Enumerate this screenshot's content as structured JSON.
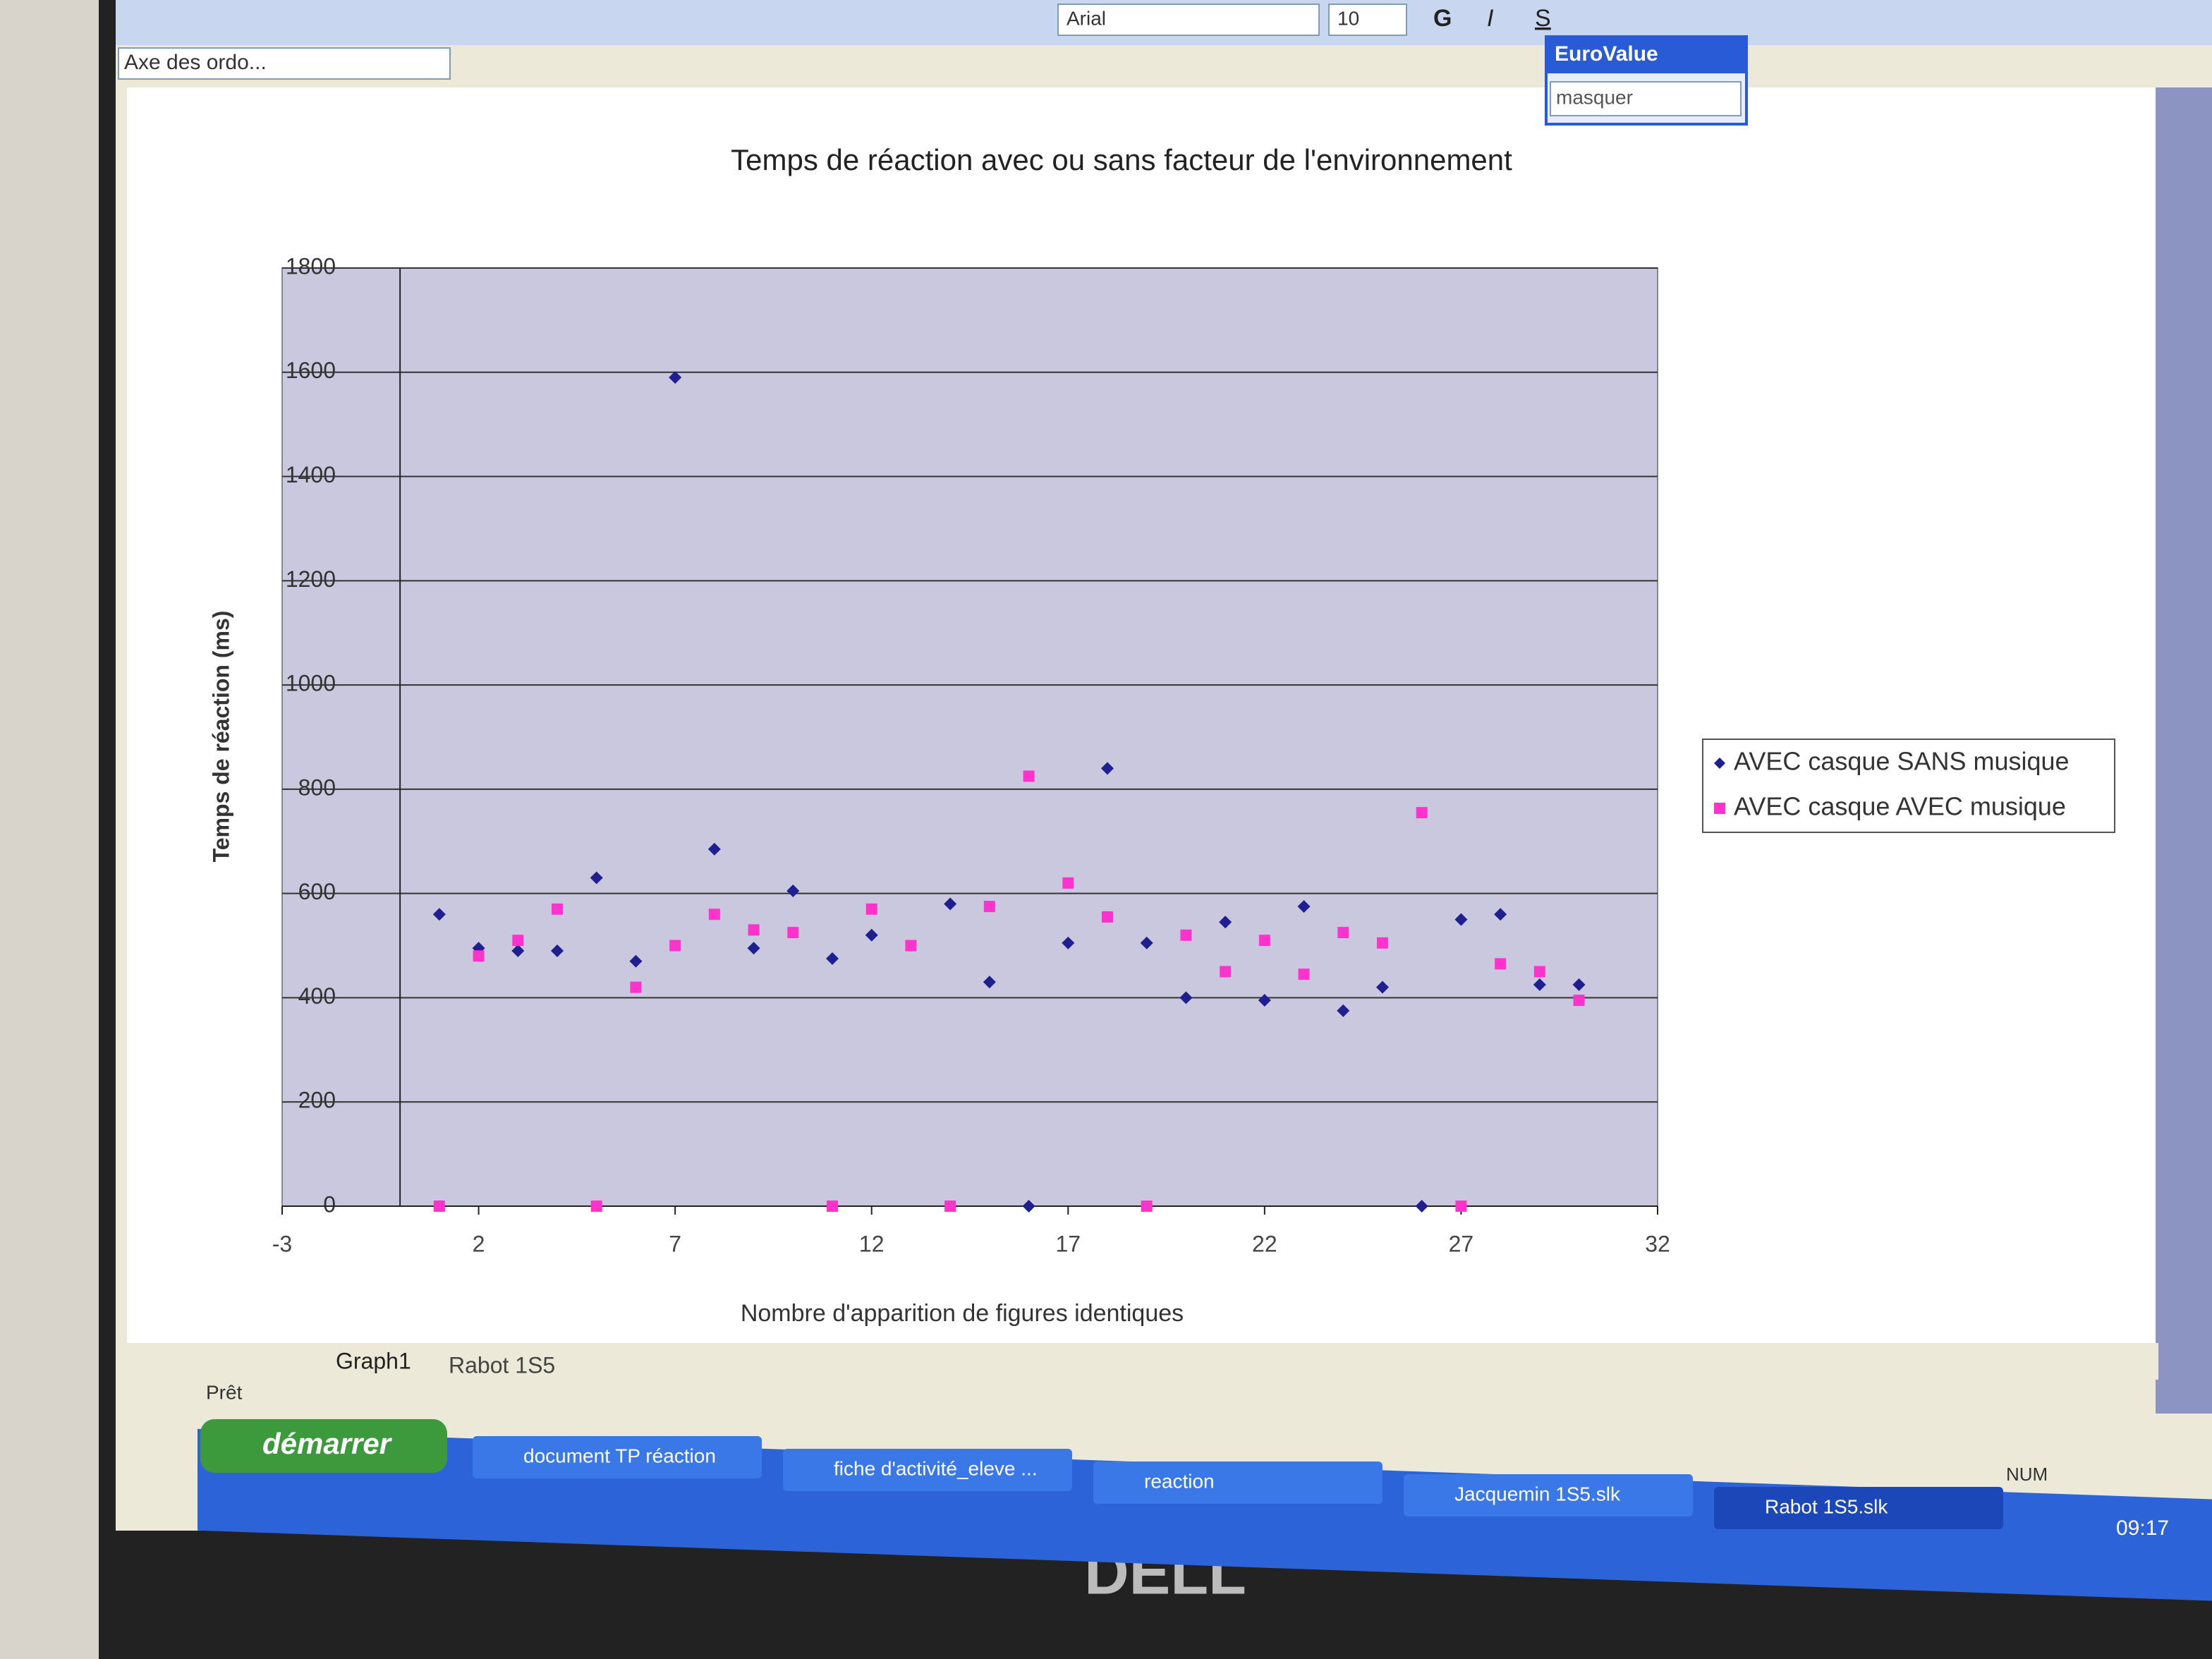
{
  "toolbar": {
    "font": "Arial",
    "size": "10",
    "bold": "G",
    "italic": "I",
    "underline": "S"
  },
  "formula_bar": {
    "name_box": "Axe des ordo..."
  },
  "floating_panel": {
    "title": "EuroValue",
    "option": "masquer"
  },
  "chart_data": {
    "type": "scatter",
    "title": "Temps de réaction avec ou sans facteur de l'environnement",
    "x_label": "Nombre d'apparition de figures identiques",
    "y_label": "Temps de réaction (ms)",
    "x": [
      1,
      2,
      3,
      4,
      5,
      6,
      7,
      8,
      9,
      10,
      11,
      12,
      13,
      14,
      15,
      16,
      17,
      18,
      19,
      20,
      21,
      22,
      23,
      24,
      25,
      26,
      27,
      28,
      29,
      30
    ],
    "series": [
      {
        "name": "AVEC casque SANS musique",
        "color": "#1f1f8f",
        "marker": "diamond",
        "values": [
          560,
          495,
          490,
          490,
          630,
          470,
          1590,
          685,
          495,
          605,
          475,
          520,
          null,
          580,
          430,
          0,
          505,
          840,
          505,
          400,
          545,
          395,
          575,
          375,
          420,
          0,
          550,
          560,
          425,
          425
        ]
      },
      {
        "name": "AVEC casque AVEC musique",
        "color": "#ff33cc",
        "marker": "square",
        "values": [
          0,
          480,
          510,
          570,
          0,
          420,
          500,
          560,
          530,
          525,
          0,
          570,
          500,
          0,
          575,
          825,
          620,
          555,
          0,
          520,
          450,
          510,
          445,
          525,
          505,
          755,
          0,
          465,
          450,
          395
        ]
      }
    ],
    "xlim": [
      -3,
      32
    ],
    "xticks": [
      -3,
      2,
      7,
      12,
      17,
      22,
      27,
      32
    ],
    "ylim": [
      0,
      1800
    ],
    "yticks": [
      0,
      200,
      400,
      600,
      800,
      1000,
      1200,
      1400,
      1600,
      1800
    ],
    "grid": true,
    "legend": "right"
  },
  "sheet_tabs": [
    "Graph1",
    "Rabot 1S5"
  ],
  "status": {
    "left": "Prêt",
    "right": "NUM"
  },
  "taskbar": {
    "start": "démarrer",
    "items": [
      "document TP réaction",
      "fiche d'activité_eleve ...",
      "reaction",
      "Jacquemin 1S5.slk",
      "Rabot 1S5.slk"
    ],
    "clock": "09:17"
  },
  "monitor": {
    "brand": "DELL"
  }
}
